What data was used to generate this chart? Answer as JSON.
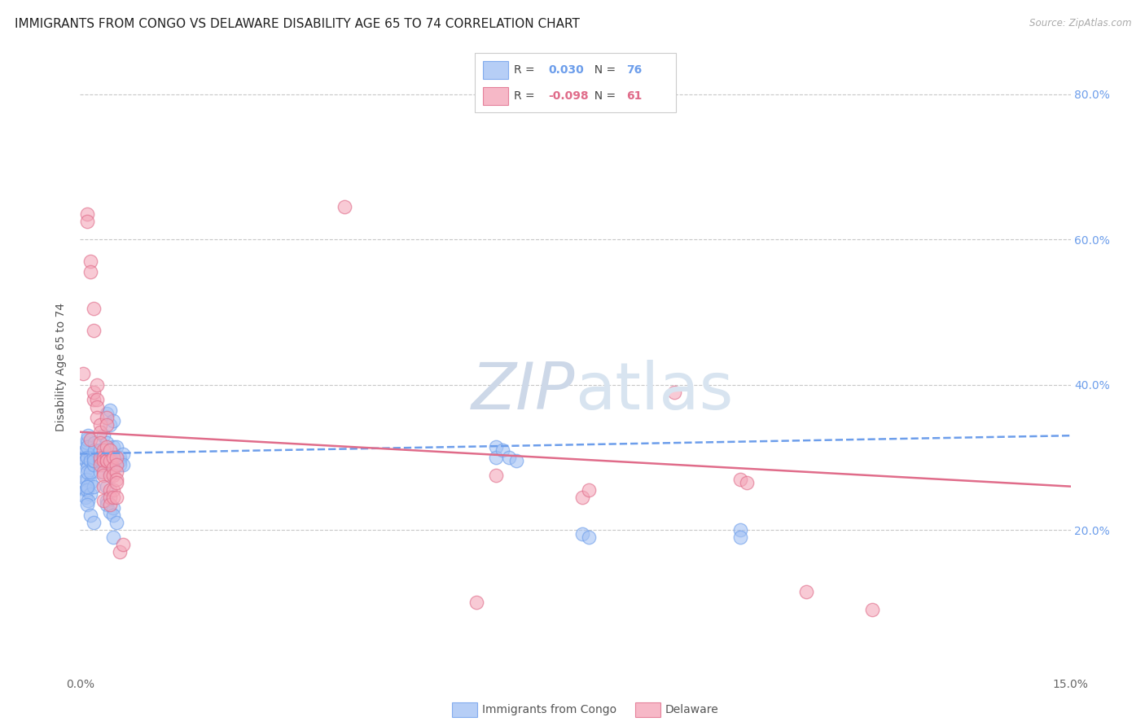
{
  "title": "IMMIGRANTS FROM CONGO VS DELAWARE DISABILITY AGE 65 TO 74 CORRELATION CHART",
  "source": "Source: ZipAtlas.com",
  "ylabel": "Disability Age 65 to 74",
  "legend_label_blue": "Immigrants from Congo",
  "legend_label_pink": "Delaware",
  "R_blue": 0.03,
  "N_blue": 76,
  "R_pink": -0.098,
  "N_pink": 61,
  "xlim": [
    0.0,
    0.15
  ],
  "ylim": [
    0.0,
    0.85
  ],
  "background_color": "#ffffff",
  "grid_color": "#c8c8c8",
  "blue_color": "#a4c2f4",
  "pink_color": "#f4a7b9",
  "blue_edge_color": "#6d9eeb",
  "pink_edge_color": "#e06c8a",
  "blue_line_color": "#6d9eeb",
  "pink_line_color": "#e06c8a",
  "watermark_color": "#cdd8e8",
  "title_fontsize": 11,
  "axis_label_fontsize": 10,
  "tick_fontsize": 10,
  "blue_scatter": [
    [
      0.0005,
      0.3
    ],
    [
      0.0005,
      0.305
    ],
    [
      0.0008,
      0.31
    ],
    [
      0.0008,
      0.295
    ],
    [
      0.001,
      0.32
    ],
    [
      0.001,
      0.325
    ],
    [
      0.0012,
      0.33
    ],
    [
      0.001,
      0.315
    ],
    [
      0.0015,
      0.3
    ],
    [
      0.0012,
      0.29
    ],
    [
      0.001,
      0.285
    ],
    [
      0.001,
      0.3
    ],
    [
      0.0015,
      0.295
    ],
    [
      0.0008,
      0.27
    ],
    [
      0.001,
      0.27
    ],
    [
      0.0015,
      0.265
    ],
    [
      0.0008,
      0.255
    ],
    [
      0.001,
      0.26
    ],
    [
      0.0008,
      0.245
    ],
    [
      0.001,
      0.255
    ],
    [
      0.0015,
      0.25
    ],
    [
      0.002,
      0.26
    ],
    [
      0.0012,
      0.24
    ],
    [
      0.001,
      0.235
    ],
    [
      0.001,
      0.26
    ],
    [
      0.001,
      0.28
    ],
    [
      0.0015,
      0.28
    ],
    [
      0.002,
      0.29
    ],
    [
      0.0022,
      0.32
    ],
    [
      0.0022,
      0.295
    ],
    [
      0.002,
      0.3
    ],
    [
      0.0022,
      0.31
    ],
    [
      0.003,
      0.3
    ],
    [
      0.002,
      0.295
    ],
    [
      0.0015,
      0.22
    ],
    [
      0.002,
      0.21
    ],
    [
      0.003,
      0.31
    ],
    [
      0.0035,
      0.33
    ],
    [
      0.0035,
      0.3
    ],
    [
      0.003,
      0.295
    ],
    [
      0.003,
      0.28
    ],
    [
      0.0035,
      0.29
    ],
    [
      0.004,
      0.305
    ],
    [
      0.004,
      0.32
    ],
    [
      0.0045,
      0.345
    ],
    [
      0.004,
      0.36
    ],
    [
      0.0045,
      0.365
    ],
    [
      0.005,
      0.35
    ],
    [
      0.005,
      0.315
    ],
    [
      0.005,
      0.305
    ],
    [
      0.0045,
      0.295
    ],
    [
      0.0045,
      0.28
    ],
    [
      0.004,
      0.26
    ],
    [
      0.004,
      0.24
    ],
    [
      0.004,
      0.235
    ],
    [
      0.0045,
      0.225
    ],
    [
      0.005,
      0.23
    ],
    [
      0.005,
      0.22
    ],
    [
      0.0055,
      0.21
    ],
    [
      0.005,
      0.19
    ],
    [
      0.0055,
      0.315
    ],
    [
      0.0055,
      0.3
    ],
    [
      0.006,
      0.295
    ],
    [
      0.006,
      0.3
    ],
    [
      0.0065,
      0.305
    ],
    [
      0.006,
      0.29
    ],
    [
      0.0065,
      0.29
    ],
    [
      0.063,
      0.315
    ],
    [
      0.063,
      0.3
    ],
    [
      0.064,
      0.31
    ],
    [
      0.065,
      0.3
    ],
    [
      0.066,
      0.295
    ],
    [
      0.076,
      0.195
    ],
    [
      0.077,
      0.19
    ],
    [
      0.1,
      0.2
    ],
    [
      0.1,
      0.19
    ]
  ],
  "pink_scatter": [
    [
      0.0005,
      0.415
    ],
    [
      0.001,
      0.635
    ],
    [
      0.001,
      0.625
    ],
    [
      0.0015,
      0.57
    ],
    [
      0.0015,
      0.555
    ],
    [
      0.002,
      0.505
    ],
    [
      0.002,
      0.475
    ],
    [
      0.0015,
      0.325
    ],
    [
      0.002,
      0.38
    ],
    [
      0.002,
      0.39
    ],
    [
      0.0025,
      0.4
    ],
    [
      0.0025,
      0.38
    ],
    [
      0.0025,
      0.37
    ],
    [
      0.0025,
      0.355
    ],
    [
      0.003,
      0.345
    ],
    [
      0.003,
      0.335
    ],
    [
      0.003,
      0.32
    ],
    [
      0.003,
      0.3
    ],
    [
      0.003,
      0.29
    ],
    [
      0.0035,
      0.31
    ],
    [
      0.0035,
      0.3
    ],
    [
      0.0035,
      0.295
    ],
    [
      0.0035,
      0.28
    ],
    [
      0.0035,
      0.275
    ],
    [
      0.0035,
      0.26
    ],
    [
      0.0035,
      0.24
    ],
    [
      0.004,
      0.3
    ],
    [
      0.004,
      0.295
    ],
    [
      0.004,
      0.355
    ],
    [
      0.004,
      0.345
    ],
    [
      0.004,
      0.315
    ],
    [
      0.004,
      0.295
    ],
    [
      0.0045,
      0.31
    ],
    [
      0.0045,
      0.295
    ],
    [
      0.0045,
      0.275
    ],
    [
      0.0045,
      0.255
    ],
    [
      0.0045,
      0.245
    ],
    [
      0.0045,
      0.235
    ],
    [
      0.005,
      0.3
    ],
    [
      0.005,
      0.285
    ],
    [
      0.005,
      0.275
    ],
    [
      0.005,
      0.255
    ],
    [
      0.005,
      0.245
    ],
    [
      0.0055,
      0.3
    ],
    [
      0.0055,
      0.29
    ],
    [
      0.0055,
      0.28
    ],
    [
      0.0055,
      0.27
    ],
    [
      0.0055,
      0.265
    ],
    [
      0.0055,
      0.245
    ],
    [
      0.006,
      0.17
    ],
    [
      0.0065,
      0.18
    ],
    [
      0.04,
      0.645
    ],
    [
      0.063,
      0.275
    ],
    [
      0.076,
      0.245
    ],
    [
      0.077,
      0.255
    ],
    [
      0.09,
      0.39
    ],
    [
      0.1,
      0.27
    ],
    [
      0.101,
      0.265
    ],
    [
      0.11,
      0.115
    ],
    [
      0.12,
      0.09
    ],
    [
      0.06,
      0.1
    ]
  ]
}
